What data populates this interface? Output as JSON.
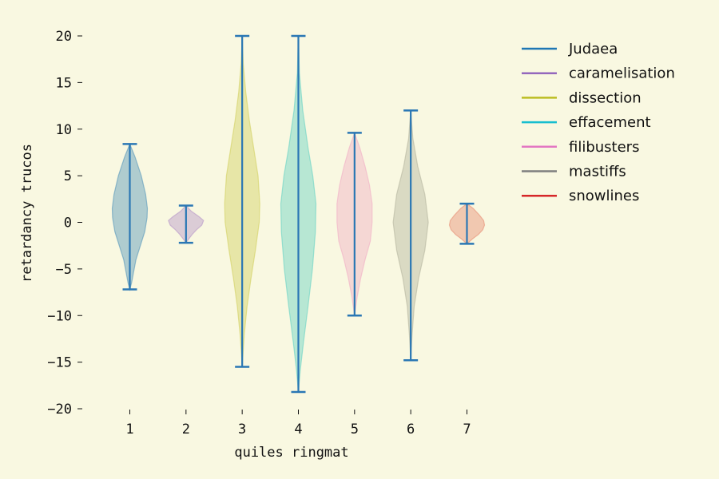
{
  "chart_data": {
    "type": "violin",
    "title": "",
    "xlabel": "quiles ringmat",
    "ylabel": "retardancy trucos",
    "ylim": [
      -20,
      20
    ],
    "yticks": [
      -20,
      -15,
      -10,
      -5,
      0,
      5,
      10,
      15,
      20
    ],
    "xticks": [
      1,
      2,
      3,
      4,
      5,
      6,
      7
    ],
    "legend_position": "upper-right-outside",
    "legend_title": "",
    "grid": false,
    "colors": {
      "background": "#f9f8e1",
      "whisker": "#2a77b4"
    },
    "series": [
      {
        "name": "Judaea",
        "legend_color": "#1f77b4",
        "fill": "#4a90b8",
        "position": 1,
        "min": -7.2,
        "max": 8.4,
        "profile": [
          [
            8.4,
            0
          ],
          [
            7.0,
            0.3
          ],
          [
            5.0,
            0.65
          ],
          [
            3.0,
            0.9
          ],
          [
            1.5,
            1.0
          ],
          [
            0.5,
            0.98
          ],
          [
            -1.0,
            0.85
          ],
          [
            -2.5,
            0.6
          ],
          [
            -4.0,
            0.35
          ],
          [
            -5.5,
            0.2
          ],
          [
            -6.5,
            0.1
          ],
          [
            -7.2,
            0
          ]
        ]
      },
      {
        "name": "caramelisation",
        "legend_color": "#9467bd",
        "fill": "#b38fc7",
        "position": 2,
        "min": -2.2,
        "max": 1.8,
        "profile": [
          [
            1.8,
            0
          ],
          [
            1.2,
            0.3
          ],
          [
            0.6,
            0.75
          ],
          [
            0.2,
            1.0
          ],
          [
            -0.3,
            0.9
          ],
          [
            -0.8,
            0.6
          ],
          [
            -1.3,
            0.35
          ],
          [
            -1.8,
            0.15
          ],
          [
            -2.2,
            0
          ]
        ]
      },
      {
        "name": "dissection",
        "legend_color": "#bcbd22",
        "fill": "#d0cd57",
        "position": 3,
        "min": -15.5,
        "max": 20.0,
        "profile": [
          [
            20.0,
            0
          ],
          [
            17.0,
            0.06
          ],
          [
            14.0,
            0.2
          ],
          [
            11.0,
            0.4
          ],
          [
            8.0,
            0.65
          ],
          [
            5.0,
            0.9
          ],
          [
            2.0,
            1.0
          ],
          [
            0.0,
            0.97
          ],
          [
            -3.0,
            0.75
          ],
          [
            -6.0,
            0.5
          ],
          [
            -9.0,
            0.28
          ],
          [
            -12.0,
            0.12
          ],
          [
            -14.0,
            0.05
          ],
          [
            -15.5,
            0
          ]
        ]
      },
      {
        "name": "effacement",
        "legend_color": "#17becf",
        "fill": "#5ccfc2",
        "position": 4,
        "min": -18.2,
        "max": 20.0,
        "profile": [
          [
            20.0,
            0
          ],
          [
            16.0,
            0.06
          ],
          [
            12.0,
            0.25
          ],
          [
            8.0,
            0.55
          ],
          [
            5.0,
            0.82
          ],
          [
            2.0,
            1.0
          ],
          [
            -1.0,
            0.97
          ],
          [
            -5.0,
            0.8
          ],
          [
            -9.0,
            0.55
          ],
          [
            -13.0,
            0.28
          ],
          [
            -16.0,
            0.1
          ],
          [
            -18.2,
            0
          ]
        ]
      },
      {
        "name": "filibusters",
        "legend_color": "#e377c2",
        "fill": "#f0a9c4",
        "position": 5,
        "min": -10.0,
        "max": 9.6,
        "profile": [
          [
            9.6,
            0
          ],
          [
            8.0,
            0.3
          ],
          [
            6.0,
            0.6
          ],
          [
            4.0,
            0.85
          ],
          [
            2.0,
            1.0
          ],
          [
            0.0,
            1.0
          ],
          [
            -2.0,
            0.9
          ],
          [
            -4.0,
            0.6
          ],
          [
            -6.0,
            0.35
          ],
          [
            -8.0,
            0.15
          ],
          [
            -10.0,
            0
          ]
        ]
      },
      {
        "name": "mastiffs",
        "legend_color": "#7f7f7f",
        "fill": "#b1b09b",
        "position": 6,
        "min": -14.8,
        "max": 12.0,
        "profile": [
          [
            12.0,
            0
          ],
          [
            9.0,
            0.12
          ],
          [
            6.0,
            0.4
          ],
          [
            3.0,
            0.8
          ],
          [
            0.0,
            1.0
          ],
          [
            -3.0,
            0.8
          ],
          [
            -6.0,
            0.45
          ],
          [
            -9.0,
            0.2
          ],
          [
            -12.0,
            0.08
          ],
          [
            -14.8,
            0
          ]
        ]
      },
      {
        "name": "snowlines",
        "legend_color": "#d62728",
        "fill": "#e6866d",
        "position": 7,
        "min": -2.3,
        "max": 2.0,
        "profile": [
          [
            2.0,
            0
          ],
          [
            1.5,
            0.35
          ],
          [
            0.8,
            0.7
          ],
          [
            0.2,
            0.95
          ],
          [
            -0.3,
            1.0
          ],
          [
            -0.8,
            0.9
          ],
          [
            -1.3,
            0.65
          ],
          [
            -1.8,
            0.3
          ],
          [
            -2.3,
            0
          ]
        ]
      }
    ]
  }
}
